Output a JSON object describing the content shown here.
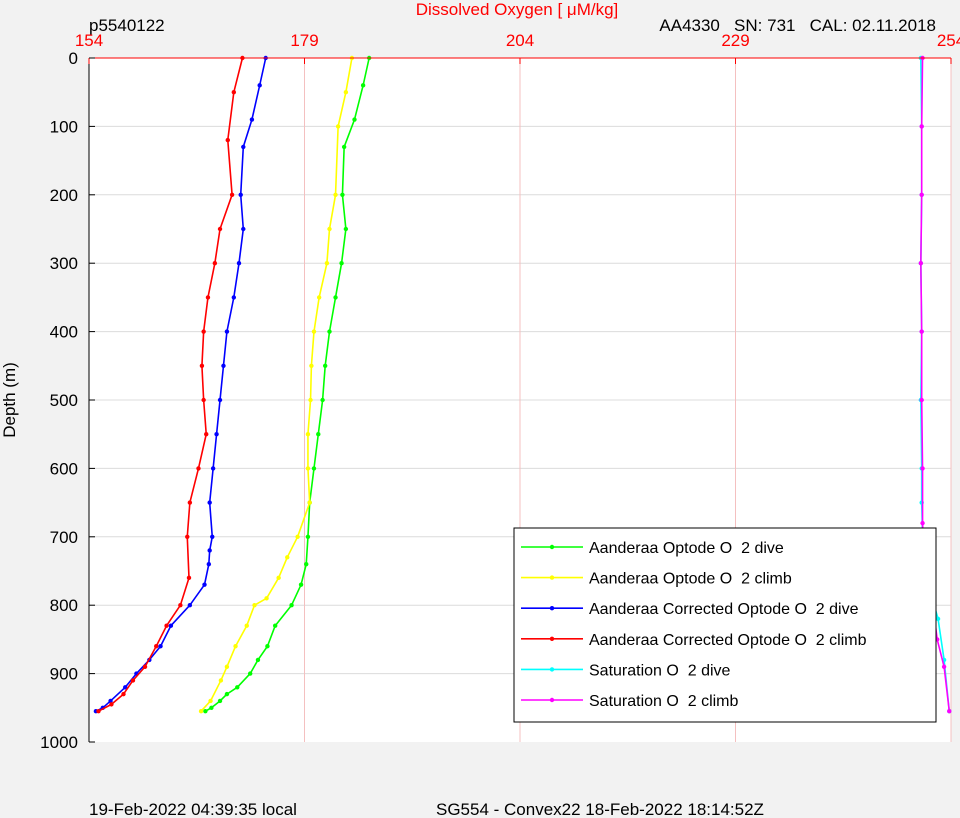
{
  "header": {
    "profile_id": "p5540122",
    "sensor_info": "AA4330   SN: 731   CAL: 02.11.2018"
  },
  "footer": {
    "local_time": "19-Feb-2022 04:39:35 local",
    "mission": "SG554 - Convex22 18-Feb-2022 18:14:52Z"
  },
  "chart_data": {
    "type": "line",
    "title": "",
    "xlabel": "Dissolved Oxygen [   μM/kg]",
    "ylabel": "Depth (m)",
    "xlim": [
      154,
      254
    ],
    "ylim": [
      0,
      1000
    ],
    "y_reversed": true,
    "x_axis_position": "top",
    "x_ticks": [
      154,
      179,
      204,
      229,
      254
    ],
    "y_ticks": [
      0,
      100,
      200,
      300,
      400,
      500,
      600,
      700,
      800,
      900,
      1000
    ],
    "grid": true,
    "legend_position": "bottom-right",
    "colors": {
      "x_axis": "#ff0000",
      "grid_x": "#f4c0c0",
      "grid_y": "#dcdcdc"
    },
    "series": [
      {
        "name": "Aanderaa Optode O  2 dive",
        "color": "#00ff00",
        "x": [
          186.5,
          185.8,
          184.8,
          183.6,
          183.4,
          183.8,
          183.3,
          182.6,
          181.9,
          181.4,
          181.1,
          180.6,
          180.1,
          179.6,
          179.4,
          179.2,
          178.6,
          177.5,
          175.6,
          174.7,
          173.6,
          172.7,
          171.2,
          170.0,
          169.2,
          168.2,
          167.5
        ],
        "y": [
          0,
          40,
          90,
          130,
          200,
          250,
          300,
          350,
          400,
          450,
          500,
          550,
          600,
          650,
          700,
          740,
          770,
          800,
          830,
          860,
          880,
          900,
          920,
          930,
          940,
          950,
          955
        ]
      },
      {
        "name": "Aanderaa Optode O  2 climb",
        "color": "#ffff00",
        "x": [
          184.5,
          183.8,
          182.9,
          182.6,
          181.9,
          181.6,
          180.7,
          180.1,
          179.8,
          179.7,
          179.4,
          179.4,
          179.6,
          178.2,
          177.0,
          176.0,
          174.6,
          173.2,
          172.3,
          171.0,
          170.0,
          169.3,
          168.1,
          167.0
        ],
        "y": [
          0,
          50,
          100,
          200,
          250,
          300,
          350,
          400,
          450,
          500,
          550,
          600,
          650,
          700,
          730,
          760,
          790,
          800,
          830,
          860,
          890,
          910,
          940,
          955
        ]
      },
      {
        "name": "Aanderaa Corrected Optode O  2 dive",
        "color": "#0000ff",
        "x": [
          174.5,
          173.8,
          172.9,
          171.9,
          171.6,
          171.9,
          171.4,
          170.8,
          170.0,
          169.6,
          169.2,
          168.8,
          168.4,
          168.0,
          168.3,
          168.0,
          167.9,
          167.4,
          165.7,
          163.5,
          162.3,
          161.0,
          159.5,
          158.2,
          156.5,
          155.6,
          154.8
        ],
        "y": [
          0,
          40,
          90,
          130,
          200,
          250,
          300,
          350,
          400,
          450,
          500,
          550,
          600,
          650,
          700,
          720,
          740,
          770,
          800,
          830,
          860,
          880,
          900,
          920,
          940,
          950,
          955
        ]
      },
      {
        "name": "Aanderaa Corrected Optode O  2 climb",
        "color": "#ff0000",
        "x": [
          171.8,
          170.8,
          170.1,
          170.6,
          169.2,
          168.6,
          167.8,
          167.3,
          167.1,
          167.3,
          167.6,
          166.7,
          165.7,
          165.4,
          165.6,
          164.6,
          163.0,
          161.8,
          160.5,
          159.1,
          158.0,
          156.6,
          155.1
        ],
        "y": [
          0,
          50,
          120,
          200,
          250,
          300,
          350,
          400,
          450,
          500,
          550,
          600,
          650,
          700,
          760,
          800,
          830,
          860,
          890,
          910,
          930,
          945,
          955
        ]
      },
      {
        "name": "Saturation O  2 dive",
        "color": "#00ffff",
        "x": [
          250.5,
          250.6,
          250.6,
          250.5,
          250.6,
          250.5,
          250.6,
          250.6,
          250.7,
          250.9,
          251.6,
          252.5,
          253.2,
          253.8
        ],
        "y": [
          0,
          100,
          200,
          300,
          400,
          500,
          600,
          650,
          700,
          750,
          780,
          820,
          880,
          955
        ]
      },
      {
        "name": "Saturation O  2 climb",
        "color": "#ff00ff",
        "x": [
          250.7,
          250.6,
          250.6,
          250.5,
          250.6,
          250.6,
          250.7,
          250.7,
          250.9,
          251.1,
          252.0,
          252.4,
          253.2,
          253.8
        ],
        "y": [
          0,
          100,
          200,
          300,
          400,
          500,
          600,
          680,
          750,
          790,
          810,
          850,
          890,
          955
        ]
      }
    ]
  }
}
